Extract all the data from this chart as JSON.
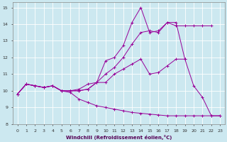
{
  "xlabel": "Windchill (Refroidissement éolien,°C)",
  "bg_color": "#cce8f0",
  "line_color": "#990099",
  "grid_color": "#ffffff",
  "xlim": [
    -0.5,
    23.5
  ],
  "ylim": [
    8.0,
    15.3
  ],
  "xticks": [
    0,
    1,
    2,
    3,
    4,
    5,
    6,
    7,
    8,
    9,
    10,
    11,
    12,
    13,
    14,
    15,
    16,
    17,
    18,
    19,
    20,
    21,
    22,
    23
  ],
  "yticks": [
    8,
    9,
    10,
    11,
    12,
    13,
    14,
    15
  ],
  "series": [
    {
      "x": [
        0,
        1,
        2,
        3,
        4,
        5,
        6,
        7,
        8,
        9,
        10,
        11,
        12,
        13,
        14,
        15,
        16,
        17,
        18,
        19,
        20,
        21,
        22,
        23
      ],
      "y": [
        9.8,
        10.4,
        10.3,
        10.2,
        10.3,
        10.0,
        10.0,
        10.0,
        10.1,
        10.5,
        11.8,
        12.0,
        12.7,
        14.1,
        15.0,
        13.5,
        13.6,
        14.1,
        14.1,
        11.9,
        10.3,
        9.6,
        8.5,
        8.5
      ]
    },
    {
      "x": [
        0,
        1,
        2,
        3,
        4,
        5,
        6,
        7,
        8,
        9,
        10,
        11,
        12,
        13,
        14,
        15,
        16,
        17,
        18,
        19,
        20,
        21,
        22
      ],
      "y": [
        9.8,
        10.4,
        10.3,
        10.2,
        10.3,
        10.0,
        10.0,
        10.1,
        10.4,
        10.5,
        11.0,
        11.4,
        12.0,
        12.8,
        13.5,
        13.6,
        13.5,
        14.1,
        13.9,
        13.9,
        13.9,
        13.9,
        13.9
      ]
    },
    {
      "x": [
        0,
        1,
        2,
        3,
        4,
        5,
        6,
        7,
        8,
        9,
        10,
        11,
        12,
        13,
        14,
        15,
        16,
        17,
        18,
        19
      ],
      "y": [
        9.8,
        10.4,
        10.3,
        10.2,
        10.3,
        10.0,
        10.0,
        10.0,
        10.1,
        10.5,
        10.5,
        11.0,
        11.3,
        11.6,
        11.9,
        11.0,
        11.1,
        11.5,
        11.9,
        11.9
      ]
    },
    {
      "x": [
        0,
        1,
        2,
        3,
        4,
        5,
        6,
        7,
        8,
        9,
        10,
        11,
        12,
        13,
        14,
        15,
        16,
        17,
        18,
        19,
        20,
        21,
        22,
        23
      ],
      "y": [
        9.8,
        10.4,
        10.3,
        10.2,
        10.3,
        10.0,
        9.9,
        9.5,
        9.3,
        9.1,
        9.0,
        8.9,
        8.8,
        8.7,
        8.65,
        8.6,
        8.55,
        8.5,
        8.5,
        8.5,
        8.5,
        8.5,
        8.5,
        8.5
      ]
    }
  ]
}
